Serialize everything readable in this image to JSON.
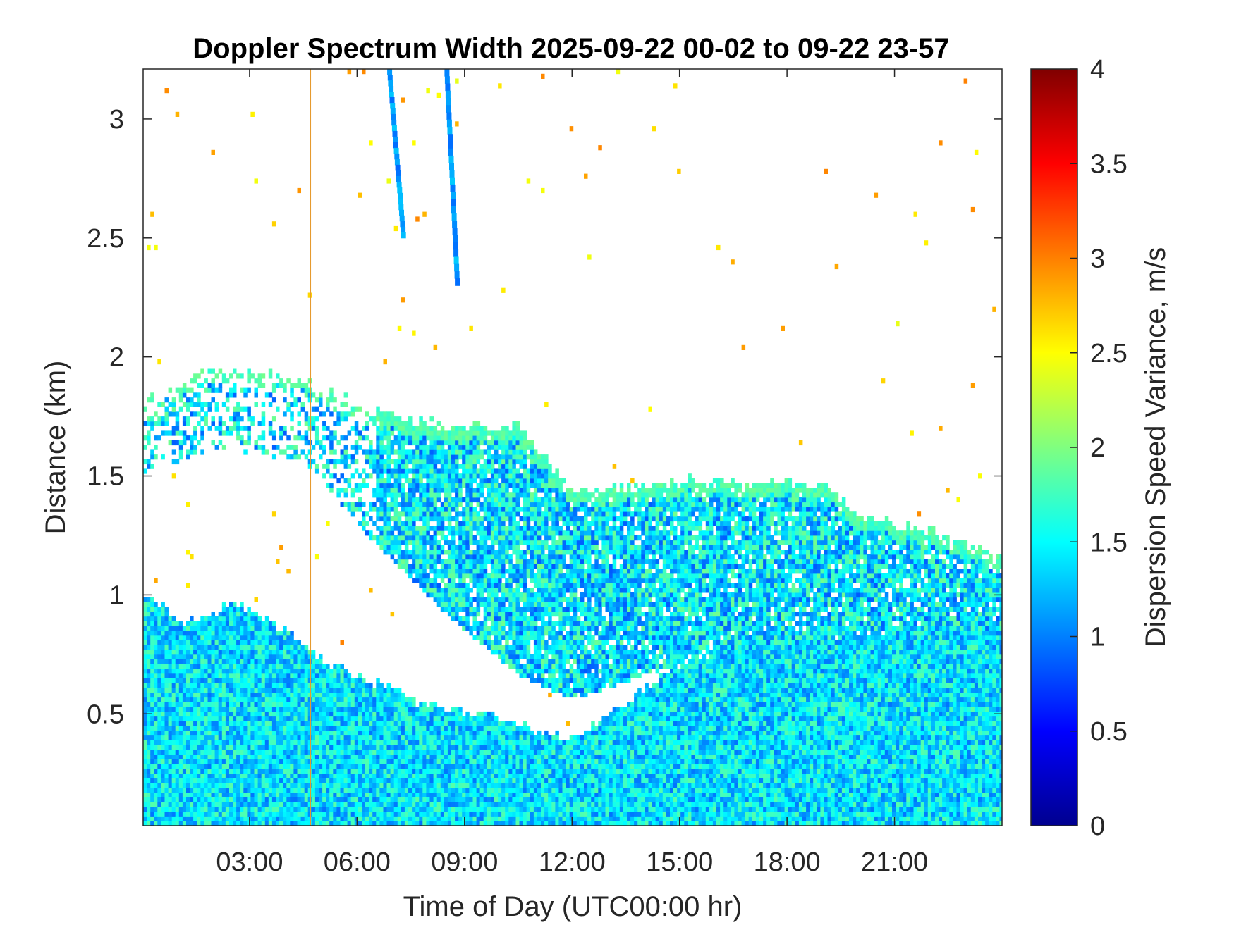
{
  "chart_data": {
    "type": "heatmap",
    "title": "Doppler Spectrum Width 2025-09-22 00-02 to 09-22 23-57",
    "xlabel": "Time of Day (UTC00:00 hr)",
    "ylabel": "Distance (km)",
    "colorbar_label": "Dispersion Speed Variance, m/s",
    "x_unit": "hours",
    "xlim": [
      0.03,
      24.0
    ],
    "ylim": [
      0.03,
      3.21
    ],
    "clim": [
      0,
      4
    ],
    "colormap": "jet",
    "x_ticks": [
      {
        "value": 3,
        "label": "03:00"
      },
      {
        "value": 6,
        "label": "06:00"
      },
      {
        "value": 9,
        "label": "09:00"
      },
      {
        "value": 12,
        "label": "12:00"
      },
      {
        "value": 15,
        "label": "15:00"
      },
      {
        "value": 18,
        "label": "18:00"
      },
      {
        "value": 21,
        "label": "21:00"
      }
    ],
    "y_ticks": [
      {
        "value": 0.5,
        "label": "0.5"
      },
      {
        "value": 1,
        "label": "1"
      },
      {
        "value": 1.5,
        "label": "1.5"
      },
      {
        "value": 2,
        "label": "2"
      },
      {
        "value": 2.5,
        "label": "2.5"
      },
      {
        "value": 3,
        "label": "3"
      }
    ],
    "colorbar_ticks": [
      {
        "value": 0,
        "label": "0"
      },
      {
        "value": 0.5,
        "label": "0.5"
      },
      {
        "value": 1,
        "label": "1"
      },
      {
        "value": 1.5,
        "label": "1.5"
      },
      {
        "value": 2,
        "label": "2"
      },
      {
        "value": 2.5,
        "label": "2.5"
      },
      {
        "value": 3,
        "label": "3"
      },
      {
        "value": 3.5,
        "label": "3.5"
      },
      {
        "value": 4,
        "label": "4"
      }
    ],
    "typical_value_in_layers": 1.4,
    "boundary_layer_top_km": [
      [
        0.0,
        0.99
      ],
      [
        0.5,
        0.95
      ],
      [
        1.0,
        0.87
      ],
      [
        2.0,
        0.9
      ],
      [
        2.5,
        0.97
      ],
      [
        3.0,
        0.92
      ],
      [
        4.0,
        0.84
      ],
      [
        5.0,
        0.72
      ],
      [
        6.0,
        0.65
      ],
      [
        7.0,
        0.6
      ],
      [
        7.5,
        0.55
      ],
      [
        9.0,
        0.5
      ],
      [
        10.0,
        0.48
      ],
      [
        11.0,
        0.42
      ],
      [
        12.0,
        0.38
      ],
      [
        13.0,
        0.5
      ],
      [
        14.0,
        0.6
      ],
      [
        15.0,
        0.7
      ],
      [
        16.0,
        0.75
      ],
      [
        18.0,
        0.8
      ],
      [
        21.0,
        0.85
      ],
      [
        24.0,
        0.85
      ]
    ],
    "cloud_layer_km": [
      {
        "t": 0.0,
        "bottom": 1.5,
        "top": 1.8
      },
      {
        "t": 2.0,
        "bottom": 1.6,
        "top": 1.95
      },
      {
        "t": 4.5,
        "bottom": 1.55,
        "top": 1.9
      },
      {
        "t": 6.5,
        "bottom": 1.2,
        "top": 1.75
      },
      {
        "t": 8.5,
        "bottom": 0.9,
        "top": 1.7
      },
      {
        "t": 10.5,
        "bottom": 0.65,
        "top": 1.7
      },
      {
        "t": 12.0,
        "bottom": 0.55,
        "top": 1.42
      },
      {
        "t": 15.0,
        "bottom": 0.7,
        "top": 1.47
      },
      {
        "t": 19.0,
        "bottom": 0.8,
        "top": 1.45
      },
      {
        "t": 20.0,
        "bottom": 0.85,
        "top": 1.33
      },
      {
        "t": 22.0,
        "bottom": 0.85,
        "top": 1.25
      },
      {
        "t": 24.0,
        "bottom": 0.85,
        "top": 1.15
      }
    ],
    "fall_streaks": [
      {
        "t_start": 6.9,
        "t_end": 7.3,
        "top_km": 3.21,
        "bottom_km": 2.5
      },
      {
        "t_start": 8.5,
        "t_end": 8.8,
        "top_km": 3.21,
        "bottom_km": 2.3
      }
    ],
    "vertical_line_hours": 4.7
  }
}
